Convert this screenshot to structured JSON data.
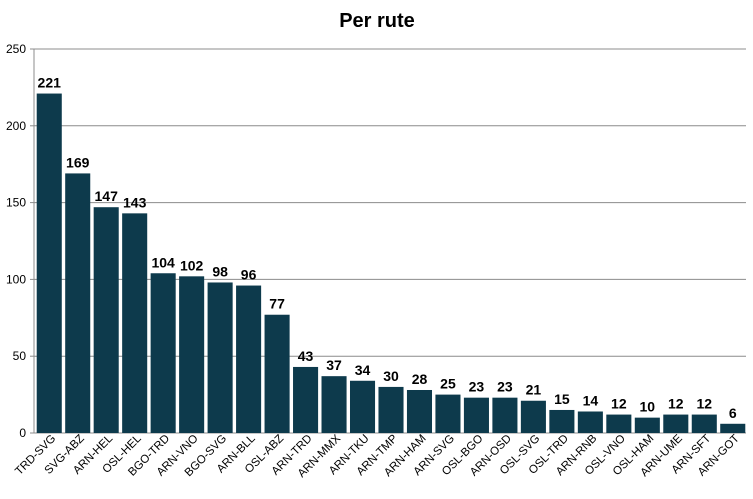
{
  "chart_data": {
    "type": "bar",
    "title": "Per rute",
    "xlabel": "",
    "ylabel": "",
    "ylim": [
      0,
      250
    ],
    "yticks": [
      0,
      50,
      100,
      150,
      200,
      250
    ],
    "grid": true,
    "legend": "none",
    "bar_color": "#0d3a4c",
    "categories": [
      "TRD-SVG",
      "SVG-ABZ",
      "ARN-HEL",
      "OSL-HEL",
      "BGO-TRD",
      "ARN-VNO",
      "BGO-SVG",
      "ARN-BLL",
      "OSL-ABZ",
      "ARN-TRD",
      "ARN-MMX",
      "ARN-TKU",
      "ARN-TMP",
      "ARN-HAM",
      "ARN-SVG",
      "OSL-BGO",
      "ARN-OSD",
      "OSL-SVG",
      "OSL-TRD",
      "ARN-RNB",
      "OSL-VNO",
      "OSL-HAM",
      "ARN-UME",
      "ARN-SFT",
      "ARN-GOT"
    ],
    "values": [
      221,
      169,
      147,
      143,
      104,
      102,
      98,
      96,
      77,
      43,
      37,
      34,
      30,
      28,
      25,
      23,
      23,
      21,
      15,
      14,
      12,
      10,
      12,
      12,
      6
    ]
  }
}
